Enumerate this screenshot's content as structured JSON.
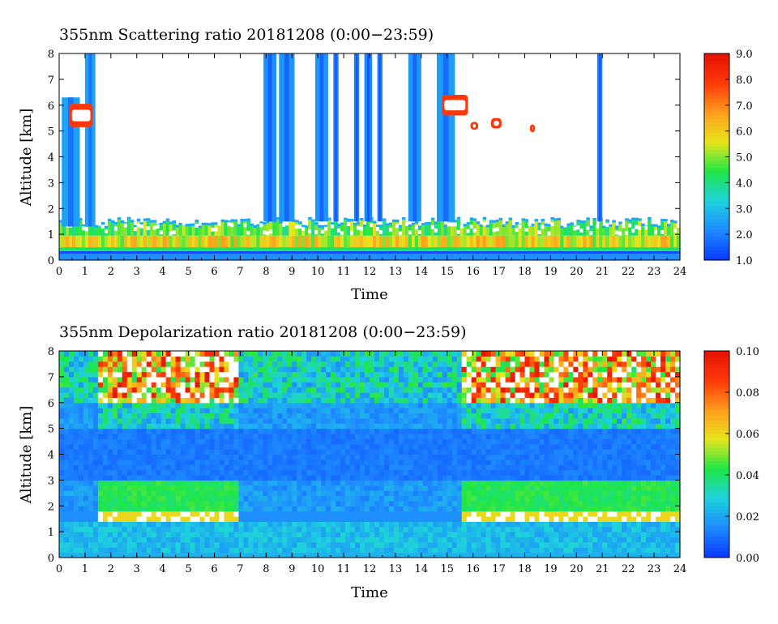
{
  "chart_data": [
    {
      "type": "heatmap",
      "title": "355nm Scattering ratio  20181208 (0:00−23:59)",
      "xlabel": "Time",
      "ylabel": "Altitude [km]",
      "xlim": [
        0,
        24
      ],
      "ylim": [
        0,
        8
      ],
      "x_ticks": [
        "0",
        "1",
        "2",
        "3",
        "4",
        "5",
        "6",
        "7",
        "8",
        "9",
        "10",
        "11",
        "12",
        "13",
        "14",
        "15",
        "16",
        "17",
        "18",
        "19",
        "20",
        "21",
        "22",
        "23",
        "24"
      ],
      "y_ticks": [
        "0",
        "1",
        "2",
        "3",
        "4",
        "5",
        "6",
        "7",
        "8"
      ],
      "colorbar": {
        "min": 1.0,
        "max": 9.0,
        "ticks": [
          "1.0",
          "2.0",
          "3.0",
          "4.0",
          "5.0",
          "6.0",
          "7.0",
          "8.0",
          "9.0"
        ]
      },
      "features": {
        "boundary_layer_top_km": 1.5,
        "boundary_layer_ratio": 5.0,
        "clear_sky_above_km": 1.7,
        "cloud_columns": [
          {
            "t0": 0.1,
            "t1": 0.8,
            "base_km": 1.3,
            "top_km": 6.3,
            "ratio": 2.5
          },
          {
            "t0": 1.0,
            "t1": 1.4,
            "base_km": 1.3,
            "top_km": 8.0,
            "ratio": 2.5
          },
          {
            "t0": 7.9,
            "t1": 8.4,
            "base_km": 1.5,
            "top_km": 8.0,
            "ratio": 2.2
          },
          {
            "t0": 8.5,
            "t1": 9.1,
            "base_km": 1.5,
            "top_km": 8.0,
            "ratio": 2.3
          },
          {
            "t0": 9.9,
            "t1": 10.4,
            "base_km": 1.5,
            "top_km": 8.0,
            "ratio": 2.3
          },
          {
            "t0": 10.6,
            "t1": 10.8,
            "base_km": 1.5,
            "top_km": 8.0,
            "ratio": 2.0
          },
          {
            "t0": 11.4,
            "t1": 11.6,
            "base_km": 1.5,
            "top_km": 8.0,
            "ratio": 2.0
          },
          {
            "t0": 11.8,
            "t1": 12.1,
            "base_km": 1.5,
            "top_km": 8.0,
            "ratio": 2.1
          },
          {
            "t0": 12.3,
            "t1": 12.5,
            "base_km": 1.5,
            "top_km": 8.0,
            "ratio": 2.0
          },
          {
            "t0": 13.5,
            "t1": 14.0,
            "base_km": 1.5,
            "top_km": 8.0,
            "ratio": 2.3
          },
          {
            "t0": 14.6,
            "t1": 15.3,
            "base_km": 1.5,
            "top_km": 8.0,
            "ratio": 2.4
          },
          {
            "t0": 20.8,
            "t1": 21.0,
            "base_km": 1.5,
            "top_km": 8.0,
            "ratio": 2.0
          }
        ],
        "elevated_cloud_layer": {
          "t0": 14.6,
          "t1": 17.0,
          "alt_km": 5.5,
          "ratio": 8.0
        }
      }
    },
    {
      "type": "heatmap",
      "title": "355nm Depolarization ratio  20181208 (0:00−23:59)",
      "xlabel": "Time",
      "ylabel": "Altitude [km]",
      "xlim": [
        0,
        24
      ],
      "ylim": [
        0,
        8
      ],
      "x_ticks": [
        "0",
        "1",
        "2",
        "3",
        "4",
        "5",
        "6",
        "7",
        "8",
        "9",
        "10",
        "11",
        "12",
        "13",
        "14",
        "15",
        "16",
        "17",
        "18",
        "19",
        "20",
        "21",
        "22",
        "23",
        "24"
      ],
      "y_ticks": [
        "0",
        "1",
        "2",
        "3",
        "4",
        "5",
        "6",
        "7",
        "8"
      ],
      "colorbar": {
        "min": 0.0,
        "max": 0.1,
        "ticks": [
          "0.00",
          "0.02",
          "0.04",
          "0.06",
          "0.08",
          "0.10"
        ]
      },
      "features": {
        "lower_layer_km": [
          0,
          1.5
        ],
        "lower_layer_ratio": 0.02,
        "mid_aerosol_layer_km": [
          1.8,
          3.0
        ],
        "mid_aerosol_ratio": 0.04,
        "mid_aerosol_periods": [
          [
            1.5,
            7.0
          ],
          [
            15.5,
            24.0
          ]
        ],
        "free_troposphere_km": [
          3.0,
          5.0
        ],
        "free_troposphere_ratio": 0.01,
        "upper_noisy_km": [
          6.0,
          8.0
        ],
        "upper_noisy_ratio": 0.09
      }
    }
  ],
  "colors": {
    "scale": [
      "#0a3cff",
      "#1e8cff",
      "#1ed2dc",
      "#1ee646",
      "#e6e61e",
      "#ffa01e",
      "#ff3c0a",
      "#e61400"
    ],
    "noise_white": "#ffffff"
  }
}
